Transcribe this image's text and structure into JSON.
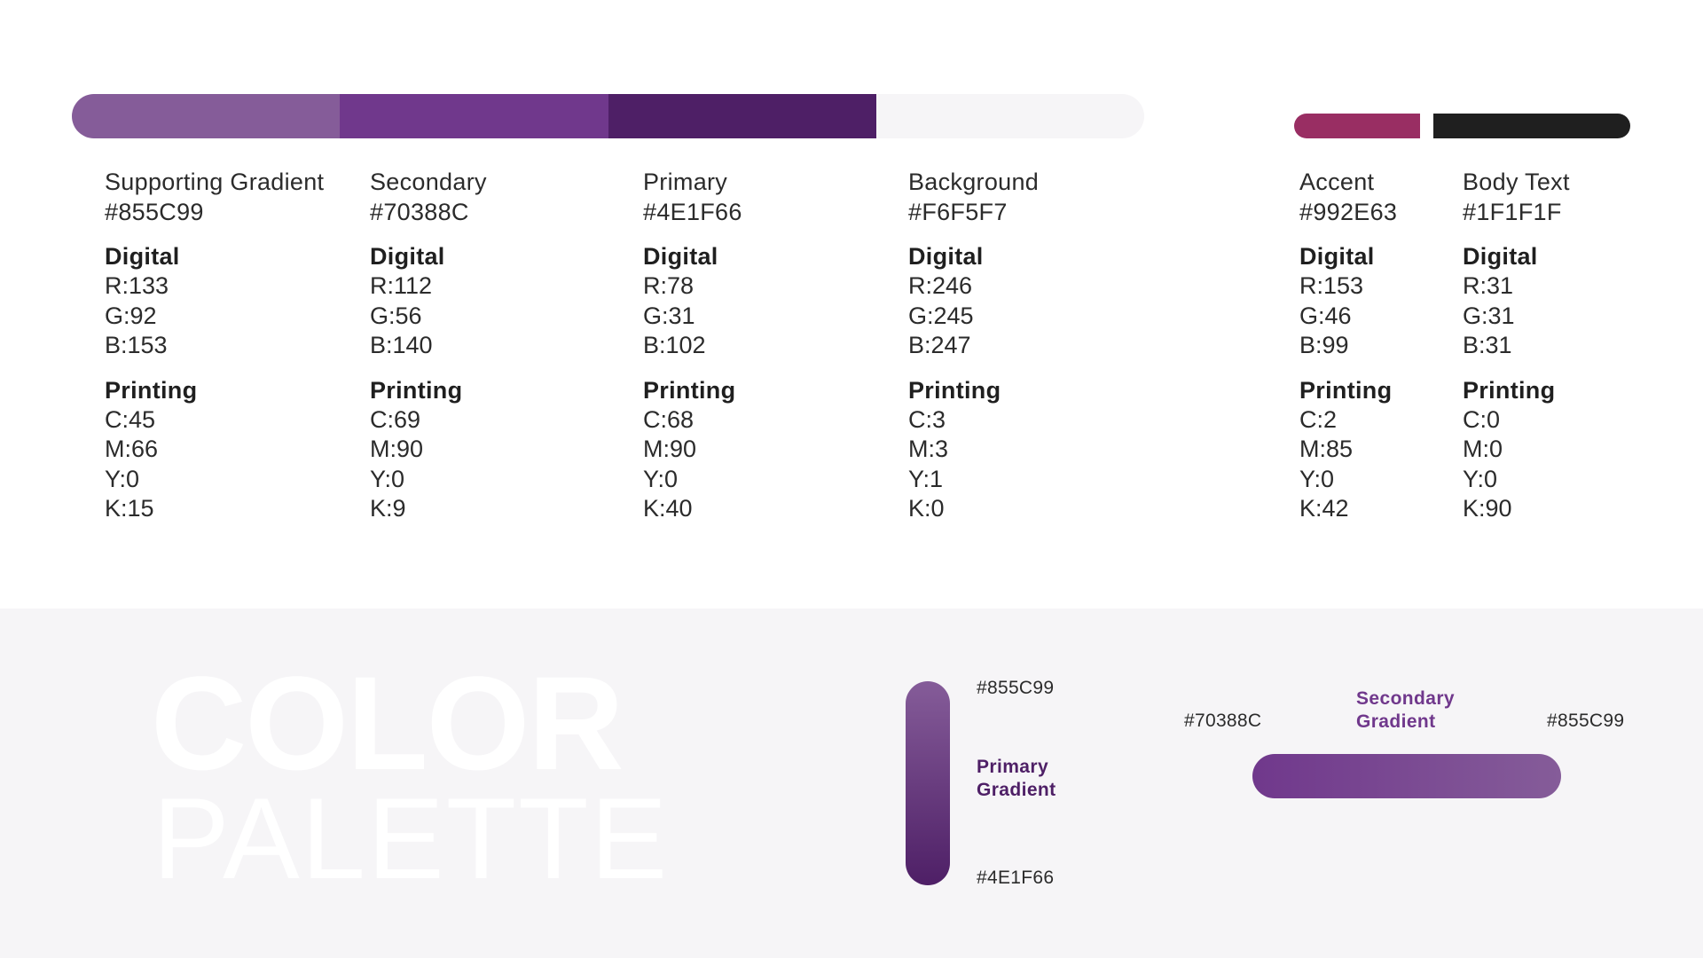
{
  "top_bar": {
    "segments": [
      {
        "name": "supporting-gradient",
        "color": "#855C99"
      },
      {
        "name": "secondary",
        "color": "#70388C"
      },
      {
        "name": "primary",
        "color": "#4E1F66"
      },
      {
        "name": "background",
        "color": "#F6F5F7"
      }
    ]
  },
  "labels": {
    "digital": "Digital",
    "printing": "Printing"
  },
  "colors": [
    {
      "name": "Supporting Gradient",
      "hex": "#855C99",
      "r": "R:133",
      "g": "G:92",
      "b": "B:153",
      "c": "C:45",
      "m": "M:66",
      "y": "Y:0",
      "k": "K:15"
    },
    {
      "name": "Secondary",
      "hex": "#70388C",
      "r": "R:112",
      "g": "G:56",
      "b": "B:140",
      "c": "C:69",
      "m": "M:90",
      "y": "Y:0",
      "k": "K:9"
    },
    {
      "name": "Primary",
      "hex": "#4E1F66",
      "r": "R:78",
      "g": "G:31",
      "b": "B:102",
      "c": "C:68",
      "m": "M:90",
      "y": "Y:0",
      "k": "K:40"
    },
    {
      "name": "Background",
      "hex": "#F6F5F7",
      "r": "R:246",
      "g": "G:245",
      "b": "B:247",
      "c": "C:3",
      "m": "M:3",
      "y": "Y:1",
      "k": "K:0"
    },
    {
      "name": "Accent",
      "hex": "#992E63",
      "r": "R:153",
      "g": "G:46",
      "b": "B:99",
      "c": "C:2",
      "m": "M:85",
      "y": "Y:0",
      "k": "K:42"
    },
    {
      "name": "Body Text",
      "hex": "#1F1F1F",
      "r": "R:31",
      "g": "G:31",
      "b": "B:31",
      "c": "C:0",
      "m": "M:0",
      "y": "Y:0",
      "k": "K:90"
    }
  ],
  "title": {
    "line1": "COLOR",
    "line2": "PALETTE"
  },
  "primary_gradient": {
    "label_line1": "Primary",
    "label_line2": "Gradient",
    "top_hex": "#855C99",
    "bottom_hex": "#4E1F66",
    "label_color": "#4E1F66"
  },
  "secondary_gradient": {
    "label_line1": "Secondary",
    "label_line2": "Gradient",
    "left_hex": "#70388C",
    "right_hex": "#855C99",
    "label_color": "#70388C"
  }
}
